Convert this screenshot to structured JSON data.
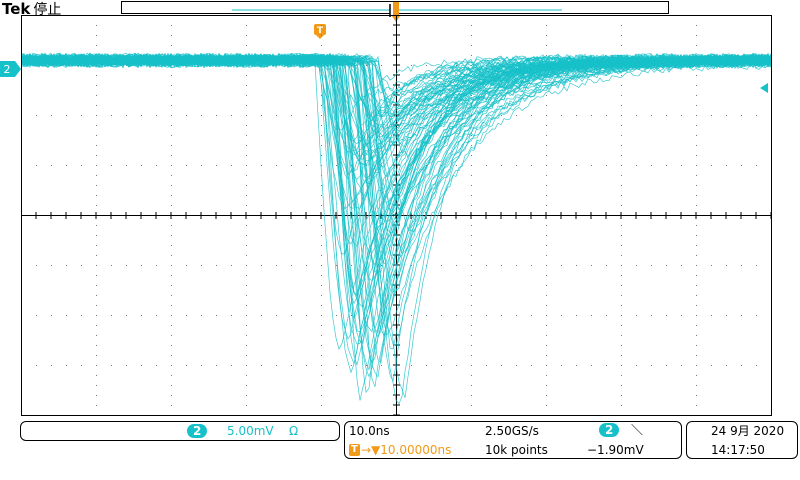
{
  "header": {
    "brand": "Tek",
    "status": "停止"
  },
  "markers": {
    "channel_marker": "2",
    "trigger_marker": "T"
  },
  "colors": {
    "channel2": "#17c1c9",
    "trigger": "#f29a18",
    "grid": "#000000"
  },
  "channel_panel": {
    "channel": "2",
    "scale": "5.00mV",
    "coupling_icon": "Ω"
  },
  "timebase_panel": {
    "horizontal_scale": "10.0ns",
    "sample_rate": "2.50GS/s",
    "trigger_source": "2",
    "trigger_slope_icon": "＼",
    "trigger_position_icon": "T",
    "trigger_delay": "→▼10.00000ns",
    "record_length": "10k points",
    "trigger_level": "−1.90mV"
  },
  "datetime_panel": {
    "date": "24 9月  2020",
    "time": "14:17:50"
  },
  "waveform": {
    "baseline_div": 0.75,
    "trace_count": 90
  }
}
